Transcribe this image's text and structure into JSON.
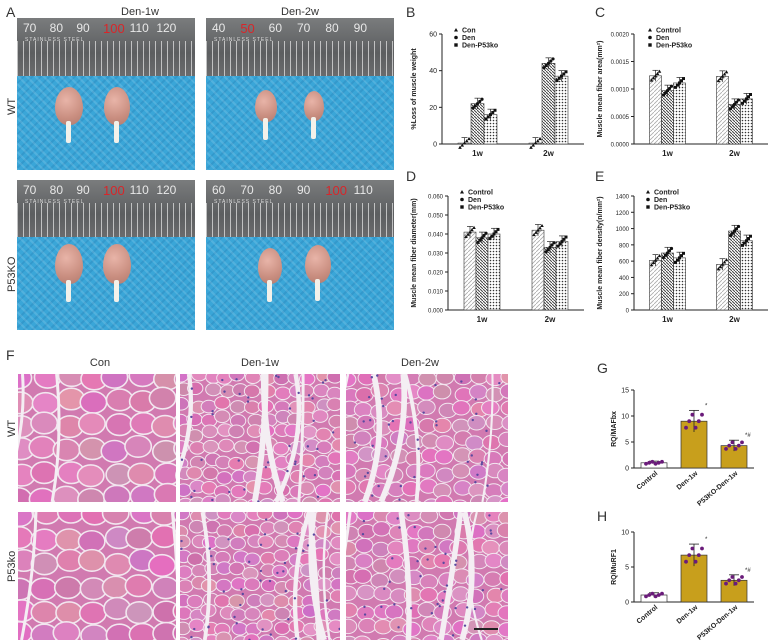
{
  "panels": {
    "A": "A",
    "B": "B",
    "C": "C",
    "D": "D",
    "E": "E",
    "F": "F",
    "G": "G",
    "H": "H"
  },
  "panelA": {
    "col_labels": [
      "Den-1w",
      "Den-2w"
    ],
    "row_labels": [
      "WT",
      "P53KO"
    ],
    "ruler_numbers": {
      "tl": [
        "70",
        "80",
        "90",
        "100",
        "110",
        "120"
      ],
      "tr": [
        "40",
        "50",
        "60",
        "70",
        "80",
        "90"
      ],
      "bl": [
        "70",
        "80",
        "90",
        "100",
        "110",
        "120"
      ],
      "br": [
        "60",
        "70",
        "80",
        "90",
        "100",
        "110"
      ]
    },
    "ruler_text": "STAINLESS STEEL"
  },
  "panelF": {
    "col_labels": [
      "Con",
      "Den-1w",
      "Den-2w"
    ],
    "row_labels": [
      "WT",
      "P53ko"
    ]
  },
  "chart_data": [
    {
      "id": "B",
      "type": "bar",
      "categories": [
        "1w",
        "2w"
      ],
      "ylabel": "%Loss of muscle weight",
      "ylim": [
        0,
        60
      ],
      "yticks": [
        0,
        20,
        40,
        60
      ],
      "series": [
        {
          "name": "Con",
          "values": [
            0.5,
            0.5
          ]
        },
        {
          "name": "Den",
          "values": [
            22,
            44
          ]
        },
        {
          "name": "Den-P53ko",
          "values": [
            16,
            37
          ]
        }
      ],
      "annotations": [
        "*",
        "*#",
        "*",
        "*#"
      ]
    },
    {
      "id": "C",
      "type": "bar",
      "categories": [
        "1w",
        "2w"
      ],
      "ylabel": "Muscle mean fiber area(mm²)",
      "ylim": [
        0,
        0.002
      ],
      "yticks": [
        "0.0000",
        "0.0005",
        "0.0010",
        "0.0015",
        "0.0020"
      ],
      "series": [
        {
          "name": "Control",
          "values": [
            0.00124,
            0.00123
          ]
        },
        {
          "name": "Den",
          "values": [
            0.00097,
            0.00072
          ]
        },
        {
          "name": "Den-P53ko",
          "values": [
            0.00111,
            0.00082
          ]
        }
      ],
      "annotations": [
        "*",
        "#",
        "*",
        "*#"
      ]
    },
    {
      "id": "D",
      "type": "bar",
      "categories": [
        "1w",
        "2w"
      ],
      "ylabel": "Muscle mean fiber diameter(mm)",
      "ylim": [
        0,
        0.06
      ],
      "yticks": [
        "0.000",
        "0.010",
        "0.020",
        "0.030",
        "0.040",
        "0.050",
        "0.060"
      ],
      "series": [
        {
          "name": "Control",
          "values": [
            0.041,
            0.042
          ]
        },
        {
          "name": "Den",
          "values": [
            0.038,
            0.033
          ]
        },
        {
          "name": "Den-P53ko",
          "values": [
            0.04,
            0.036
          ]
        }
      ],
      "annotations": [
        "*",
        "#",
        "*",
        "*#"
      ]
    },
    {
      "id": "E",
      "type": "bar",
      "categories": [
        "1w",
        "2w"
      ],
      "ylabel": "Muscle mean fiber density(n/mm²)",
      "ylim": [
        0,
        1400
      ],
      "yticks": [
        0,
        200,
        400,
        600,
        800,
        1000,
        1200,
        1400
      ],
      "series": [
        {
          "name": "Control",
          "values": [
            610,
            560
          ]
        },
        {
          "name": "Den",
          "values": [
            700,
            970
          ]
        },
        {
          "name": "Den-P53ko",
          "values": [
            640,
            850
          ]
        }
      ],
      "annotations": [
        "*",
        "*",
        "*#"
      ]
    },
    {
      "id": "G",
      "type": "bar",
      "categories": [
        "Control",
        "Den-1w",
        "P53KO-Den-1w"
      ],
      "ylabel": "RQ/MAFbx",
      "ylim": [
        0,
        15
      ],
      "yticks": [
        0,
        5,
        10,
        15
      ],
      "values": [
        1.0,
        9.0,
        4.3
      ],
      "annotations": [
        "*",
        "*#"
      ]
    },
    {
      "id": "H",
      "type": "bar",
      "categories": [
        "Control",
        "Den-1w",
        "P53KO-Den-1w"
      ],
      "ylabel": "RQ/MuRF1",
      "ylim": [
        0,
        10
      ],
      "yticks": [
        0,
        5,
        10
      ],
      "values": [
        1.0,
        6.7,
        3.1
      ],
      "annotations": [
        "*",
        "*#"
      ]
    }
  ]
}
